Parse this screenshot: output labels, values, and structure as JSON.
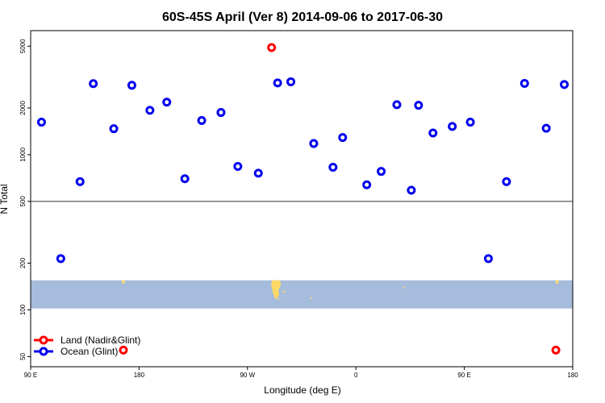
{
  "chart_data": {
    "type": "scatter",
    "title": "60S-45S April (Ver 8)   2014-09-06 to 2017-06-30",
    "xlabel": "Longitude (deg E)",
    "ylabel": "N Total",
    "x_ticks": [
      {
        "lon": 90,
        "label": "90 E"
      },
      {
        "lon": 180,
        "label": "180"
      },
      {
        "lon": 270,
        "label": "90 W"
      },
      {
        "lon": 360,
        "label": "0"
      },
      {
        "lon": 450,
        "label": "90 E"
      },
      {
        "lon": 540,
        "label": "180"
      }
    ],
    "xlim": [
      90,
      540
    ],
    "y_scale": "log",
    "y_ticks": [
      50,
      100,
      200,
      500,
      1000,
      2000,
      5000
    ],
    "ylim": [
      43,
      6300
    ],
    "reference_line_y": 500,
    "map_band_y": [
      102,
      155
    ],
    "colors": {
      "land": "#ff0000",
      "ocean": "#0000ee",
      "map_ocean": "#a6bcdc",
      "map_land": "#ffd966",
      "axes": "#000000",
      "reference_line": "#333333"
    },
    "series": [
      {
        "name": "Land (Nadir&Glint)",
        "color": "#ff0000",
        "points": [
          {
            "x": 290,
            "y": 4900
          },
          {
            "x": 167,
            "y": 55
          },
          {
            "x": 526,
            "y": 55
          }
        ]
      },
      {
        "name": "Ocean (Glint)",
        "color": "#0000ee",
        "points": [
          {
            "x": 99,
            "y": 1620
          },
          {
            "x": 115,
            "y": 214
          },
          {
            "x": 131,
            "y": 670
          },
          {
            "x": 142,
            "y": 2870
          },
          {
            "x": 159,
            "y": 1470
          },
          {
            "x": 174,
            "y": 2800
          },
          {
            "x": 189,
            "y": 1930
          },
          {
            "x": 203,
            "y": 2180
          },
          {
            "x": 218,
            "y": 700
          },
          {
            "x": 232,
            "y": 1660
          },
          {
            "x": 248,
            "y": 1870
          },
          {
            "x": 262,
            "y": 840
          },
          {
            "x": 279,
            "y": 760
          },
          {
            "x": 295,
            "y": 2900
          },
          {
            "x": 306,
            "y": 2950
          },
          {
            "x": 325,
            "y": 1180
          },
          {
            "x": 341,
            "y": 830
          },
          {
            "x": 349,
            "y": 1290
          },
          {
            "x": 369,
            "y": 640
          },
          {
            "x": 381,
            "y": 780
          },
          {
            "x": 394,
            "y": 2100
          },
          {
            "x": 406,
            "y": 590
          },
          {
            "x": 412,
            "y": 2080
          },
          {
            "x": 424,
            "y": 1380
          },
          {
            "x": 440,
            "y": 1520
          },
          {
            "x": 455,
            "y": 1620
          },
          {
            "x": 470,
            "y": 214
          },
          {
            "x": 485,
            "y": 670
          },
          {
            "x": 500,
            "y": 2880
          },
          {
            "x": 518,
            "y": 1480
          },
          {
            "x": 533,
            "y": 2830
          }
        ]
      }
    ],
    "legend": {
      "position": "bottom-left",
      "entries": [
        {
          "label": "Land (Nadir&Glint)",
          "color": "#ff0000"
        },
        {
          "label": "Ocean (Glint)",
          "color": "#0000ee"
        }
      ]
    },
    "grid": false
  }
}
